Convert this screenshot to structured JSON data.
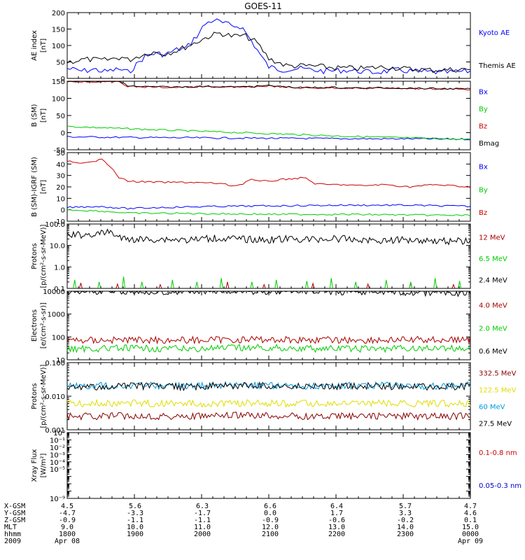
{
  "title": "GOES-11",
  "chart_data": [
    {
      "type": "line",
      "ylabel": [
        "AE index",
        "[nT]"
      ],
      "scale": "linear",
      "ylim": [
        0,
        200
      ],
      "ticks": [
        0,
        50,
        100,
        150,
        200
      ],
      "tick_labels": [
        "0",
        "50",
        "100",
        "150",
        "200"
      ],
      "legend_placement": "right",
      "series": [
        {
          "name": "Kyoto AE",
          "color": "#0000ff",
          "x": [
            0,
            0.25,
            0.45,
            0.6,
            0.75,
            0.85,
            1,
            1.1,
            1.2,
            1.3,
            1.4,
            1.5,
            1.6,
            1.7,
            1.8,
            1.95,
            2.05,
            2.15,
            2.25,
            2.4,
            2.55,
            2.7,
            2.85,
            3,
            3.1,
            3.2,
            3.3,
            3.5,
            3.8,
            4.2,
            4.6,
            5,
            5.4,
            5.8,
            6.2,
            6.6
          ],
          "y": [
            30,
            22,
            28,
            20,
            25,
            28,
            18,
            35,
            55,
            70,
            75,
            75,
            72,
            80,
            88,
            92,
            115,
            135,
            165,
            178,
            168,
            160,
            158,
            118,
            90,
            60,
            35,
            26,
            30,
            22,
            25,
            18,
            25,
            20,
            18,
            22
          ]
        },
        {
          "name": "Themis AE",
          "color": "#000000",
          "x": [
            0,
            0.3,
            0.6,
            0.9,
            1.0,
            1.2,
            1.4,
            1.6,
            1.8,
            2.0,
            2.2,
            2.35,
            2.5,
            2.7,
            2.9,
            3.1,
            3.3,
            3.6,
            4.0,
            4.4,
            4.8,
            5.2,
            5.6,
            6.0,
            6.6
          ],
          "y": [
            50,
            58,
            55,
            65,
            55,
            70,
            80,
            75,
            85,
            100,
            118,
            130,
            138,
            128,
            130,
            110,
            60,
            38,
            38,
            32,
            30,
            35,
            28,
            25,
            28
          ]
        }
      ]
    },
    {
      "type": "line",
      "ylabel": [
        "B (SM)",
        "[nT]"
      ],
      "scale": "linear",
      "ylim": [
        -50,
        150
      ],
      "ticks": [
        -50,
        0,
        50,
        100,
        150
      ],
      "tick_labels": [
        "-50",
        "0",
        "50",
        "100",
        "150"
      ],
      "legend_placement": "right",
      "series": [
        {
          "name": "Bx",
          "color": "#0000ff",
          "x": [
            0,
            1,
            2,
            3,
            4,
            5,
            6,
            6.6
          ],
          "y": [
            -12,
            -14,
            -15,
            -16,
            -17,
            -18,
            -18,
            -19
          ]
        },
        {
          "name": "By",
          "color": "#00cc00",
          "x": [
            0,
            0.6,
            1.5,
            2.5,
            3.5,
            4.5,
            5.5,
            6.6
          ],
          "y": [
            18,
            14,
            8,
            2,
            -4,
            -10,
            -15,
            -20
          ]
        },
        {
          "name": "Bz",
          "color": "#cc0000",
          "x": [
            0,
            0.4,
            0.8,
            1.0,
            1.3,
            1.8,
            2.3,
            2.8,
            3.3,
            3.8,
            4.3,
            4.8,
            5.3,
            5.8,
            6.3,
            6.6
          ],
          "y": [
            150,
            148,
            152,
            135,
            133,
            132,
            134,
            132,
            136,
            130,
            131,
            129,
            130,
            128,
            127,
            126
          ]
        },
        {
          "name": "Bmag",
          "color": "#000000",
          "x": [
            0,
            0.4,
            0.8,
            1.0,
            1.3,
            1.8,
            2.3,
            2.8,
            3.3,
            3.8,
            4.3,
            4.8,
            5.3,
            5.8,
            6.3,
            6.6
          ],
          "y": [
            151,
            149,
            153,
            136,
            134,
            133,
            135,
            133,
            137,
            131,
            132,
            130,
            131,
            129,
            128,
            127
          ]
        }
      ]
    },
    {
      "type": "line",
      "ylabel": [
        "B (SM)-IGRF (SM)",
        "[nT]"
      ],
      "scale": "linear",
      "ylim": [
        -10,
        50
      ],
      "ticks": [
        -10,
        0,
        10,
        20,
        30,
        40,
        50
      ],
      "tick_labels": [
        "-10",
        "0",
        "10",
        "20",
        "30",
        "40",
        "50"
      ],
      "legend_placement": "right",
      "series": [
        {
          "name": "Bx",
          "color": "#0000ff",
          "x": [
            0,
            0.5,
            1.0,
            1.5,
            2.5,
            3.5,
            4.5,
            5.5,
            6.6
          ],
          "y": [
            2,
            3,
            1,
            2,
            3,
            3.5,
            4,
            4,
            3
          ]
        },
        {
          "name": "By",
          "color": "#00cc00",
          "x": [
            0,
            0.5,
            0.8,
            1.0,
            1.5,
            2.5,
            3.5,
            4.5,
            5.5,
            6.6
          ],
          "y": [
            0,
            -1,
            -2,
            -3,
            -3,
            -3.5,
            -4,
            -4,
            -4.5,
            -5
          ]
        },
        {
          "name": "Bz",
          "color": "#cc0000",
          "x": [
            0,
            0.2,
            0.45,
            0.55,
            0.7,
            0.85,
            1.0,
            1.5,
            2.0,
            2.5,
            2.7,
            2.85,
            3.0,
            3.1,
            3.3,
            3.6,
            3.9,
            4.05,
            4.2,
            4.5,
            4.8,
            5.2,
            5.6,
            6.0,
            6.3,
            6.6
          ],
          "y": [
            43,
            40,
            42,
            46,
            38,
            28,
            25,
            24,
            24,
            23,
            21,
            22,
            27,
            25,
            25,
            27,
            28,
            23,
            22,
            22,
            21,
            22,
            20,
            22,
            21,
            20
          ]
        }
      ]
    },
    {
      "type": "line",
      "ylabel": [
        "Protons",
        "[p/(cm²-s-sr-MeV)]"
      ],
      "scale": "log",
      "ylim": [
        0.1,
        100
      ],
      "ticks": [
        0.1,
        1,
        10,
        100
      ],
      "tick_labels": [
        "0.1",
        "1.0",
        "10.0",
        "100.0"
      ],
      "legend_placement": "right",
      "series": [
        {
          "name": "12 MeV",
          "color": "#aa0000",
          "x": [
            0.2,
            0.8,
            1.5,
            2.6,
            3.2,
            4.0,
            4.9,
            5.6,
            6.3
          ],
          "y": [
            0.18,
            0.16,
            0.15,
            0.2,
            0.15,
            0.17,
            0.16,
            0.18,
            0.15
          ]
        },
        {
          "name": "6.5 MeV",
          "color": "#00cc00",
          "x": [
            0.1,
            0.5,
            0.9,
            1.2,
            1.7,
            2.1,
            2.5,
            3.0,
            3.4,
            3.9,
            4.3,
            4.7,
            5.2,
            5.6,
            6.0,
            6.4
          ],
          "y": [
            0.25,
            0.2,
            0.35,
            0.2,
            0.25,
            0.2,
            0.3,
            0.2,
            0.25,
            0.22,
            0.3,
            0.2,
            0.25,
            0.2,
            0.3,
            0.22
          ]
        },
        {
          "name": "2.4 MeV",
          "color": "#000000",
          "x": [
            0,
            0.3,
            0.55,
            0.7,
            0.9,
            1.2,
            1.6,
            2.0,
            2.4,
            2.8,
            3.2,
            3.6,
            4.0,
            4.4,
            4.8,
            5.2,
            5.6,
            6.0,
            6.3,
            6.6
          ],
          "y": [
            30,
            32,
            35,
            45,
            20,
            19,
            20,
            18,
            22,
            20,
            18,
            20,
            19,
            21,
            18,
            17,
            19,
            17,
            16,
            16
          ]
        }
      ]
    },
    {
      "type": "line",
      "ylabel": [
        "Electrons",
        "[e/(cm²-s-sr)]"
      ],
      "scale": "log",
      "ylim": [
        10,
        10000
      ],
      "ticks": [
        10,
        100,
        1000,
        10000
      ],
      "tick_labels": [
        "10",
        "100",
        "1000",
        "10000"
      ],
      "legend_placement": "right",
      "series": [
        {
          "name": "4.0 MeV",
          "color": "#aa0000",
          "x": [
            0,
            1,
            2,
            3,
            4,
            5,
            6,
            6.6
          ],
          "y": [
            70,
            75,
            72,
            78,
            74,
            72,
            76,
            74
          ]
        },
        {
          "name": "2.0 MeV",
          "color": "#00cc00",
          "x": [
            0,
            1,
            2,
            3,
            4,
            5,
            6,
            6.6
          ],
          "y": [
            30,
            32,
            30,
            34,
            31,
            30,
            32,
            31
          ]
        },
        {
          "name": "0.6 MeV",
          "color": "#000000",
          "x": [
            0,
            1,
            2,
            3,
            4,
            5,
            6,
            6.6
          ],
          "y": [
            11000,
            11500,
            11000,
            10500,
            10000,
            9200,
            8700,
            8200
          ]
        }
      ]
    },
    {
      "type": "line",
      "ylabel": [
        "Protons",
        "[p/(cm²-s-sr-MeV)]"
      ],
      "scale": "log",
      "ylim": [
        0.001,
        0.1
      ],
      "ticks": [
        0.001,
        0.01,
        0.1
      ],
      "tick_labels": [
        "0.001",
        "0.010",
        "0.100"
      ],
      "legend_placement": "right",
      "series": [
        {
          "name": "332.5 MeV",
          "color": "#880000",
          "x": [
            0,
            1,
            2,
            3,
            4,
            5,
            6,
            6.6
          ],
          "y": [
            0.0025,
            0.0026,
            0.0025,
            0.0027,
            0.0025,
            0.0026,
            0.0025,
            0.0026
          ]
        },
        {
          "name": "122.5 MeV",
          "color": "#dddd00",
          "x": [
            0,
            1,
            2,
            3,
            4,
            5,
            6,
            6.6
          ],
          "y": [
            0.006,
            0.0062,
            0.006,
            0.0063,
            0.006,
            0.0061,
            0.006,
            0.0062
          ]
        },
        {
          "name": "60 MeV",
          "color": "#0099dd",
          "x": [
            0,
            1,
            2,
            3,
            4,
            5,
            6,
            6.6
          ],
          "y": [
            0.02,
            0.021,
            0.02,
            0.022,
            0.02,
            0.021,
            0.02,
            0.021
          ]
        },
        {
          "name": "27.5 MeV",
          "color": "#000000",
          "x": [
            0,
            1,
            2,
            3,
            4,
            5,
            6,
            6.6
          ],
          "y": [
            0.018,
            0.02,
            0.019,
            0.021,
            0.019,
            0.02,
            0.019,
            0.02
          ]
        }
      ]
    },
    {
      "type": "line",
      "ylabel": [
        "Xray Flux",
        "[W/m²]"
      ],
      "scale": "log",
      "ylim": [
        1e-09,
        1
      ],
      "ticks": [
        1e-09,
        1e-08,
        1e-07,
        1e-06,
        1e-05,
        0.0001,
        0.001,
        0.01,
        0.1,
        1
      ],
      "tick_labels": [
        "10⁻⁹",
        "",
        "",
        "",
        "10⁻⁵",
        "10⁻⁴",
        "10⁻³",
        "10⁻²",
        "10⁻¹",
        "10⁰"
      ],
      "legend_placement": "right",
      "series": [
        {
          "name": "0.1-0.8 nm",
          "color": "#cc0000",
          "x": [],
          "y": []
        },
        {
          "name": "0.05-0.3 nm",
          "color": "#0000cc",
          "x": [],
          "y": []
        }
      ]
    }
  ],
  "ephemeris": {
    "rows": [
      {
        "label": "X-GSM",
        "values": [
          "4.5",
          "5.6",
          "6.3",
          "6.6",
          "6.4",
          "5.7",
          "4.7"
        ]
      },
      {
        "label": "Y-GSM",
        "values": [
          "-4.7",
          "-3.3",
          "-1.7",
          "0.0",
          "1.7",
          "3.3",
          "4.6"
        ]
      },
      {
        "label": "Z-GSM",
        "values": [
          "-0.9",
          "-1.1",
          "-1.1",
          "-0.9",
          "-0.6",
          "-0.2",
          "0.1"
        ]
      },
      {
        "label": "MLT",
        "values": [
          "9.0",
          "10.0",
          "11.0",
          "12.0",
          "13.0",
          "14.0",
          "15.0"
        ]
      },
      {
        "label": "hhmm",
        "values": [
          "1800",
          "1900",
          "2000",
          "2100",
          "2200",
          "2300",
          "0000"
        ]
      },
      {
        "label": "2009",
        "values": [
          "Apr 08",
          "",
          "",
          "",
          "",
          "",
          "Apr 09"
        ]
      }
    ]
  }
}
